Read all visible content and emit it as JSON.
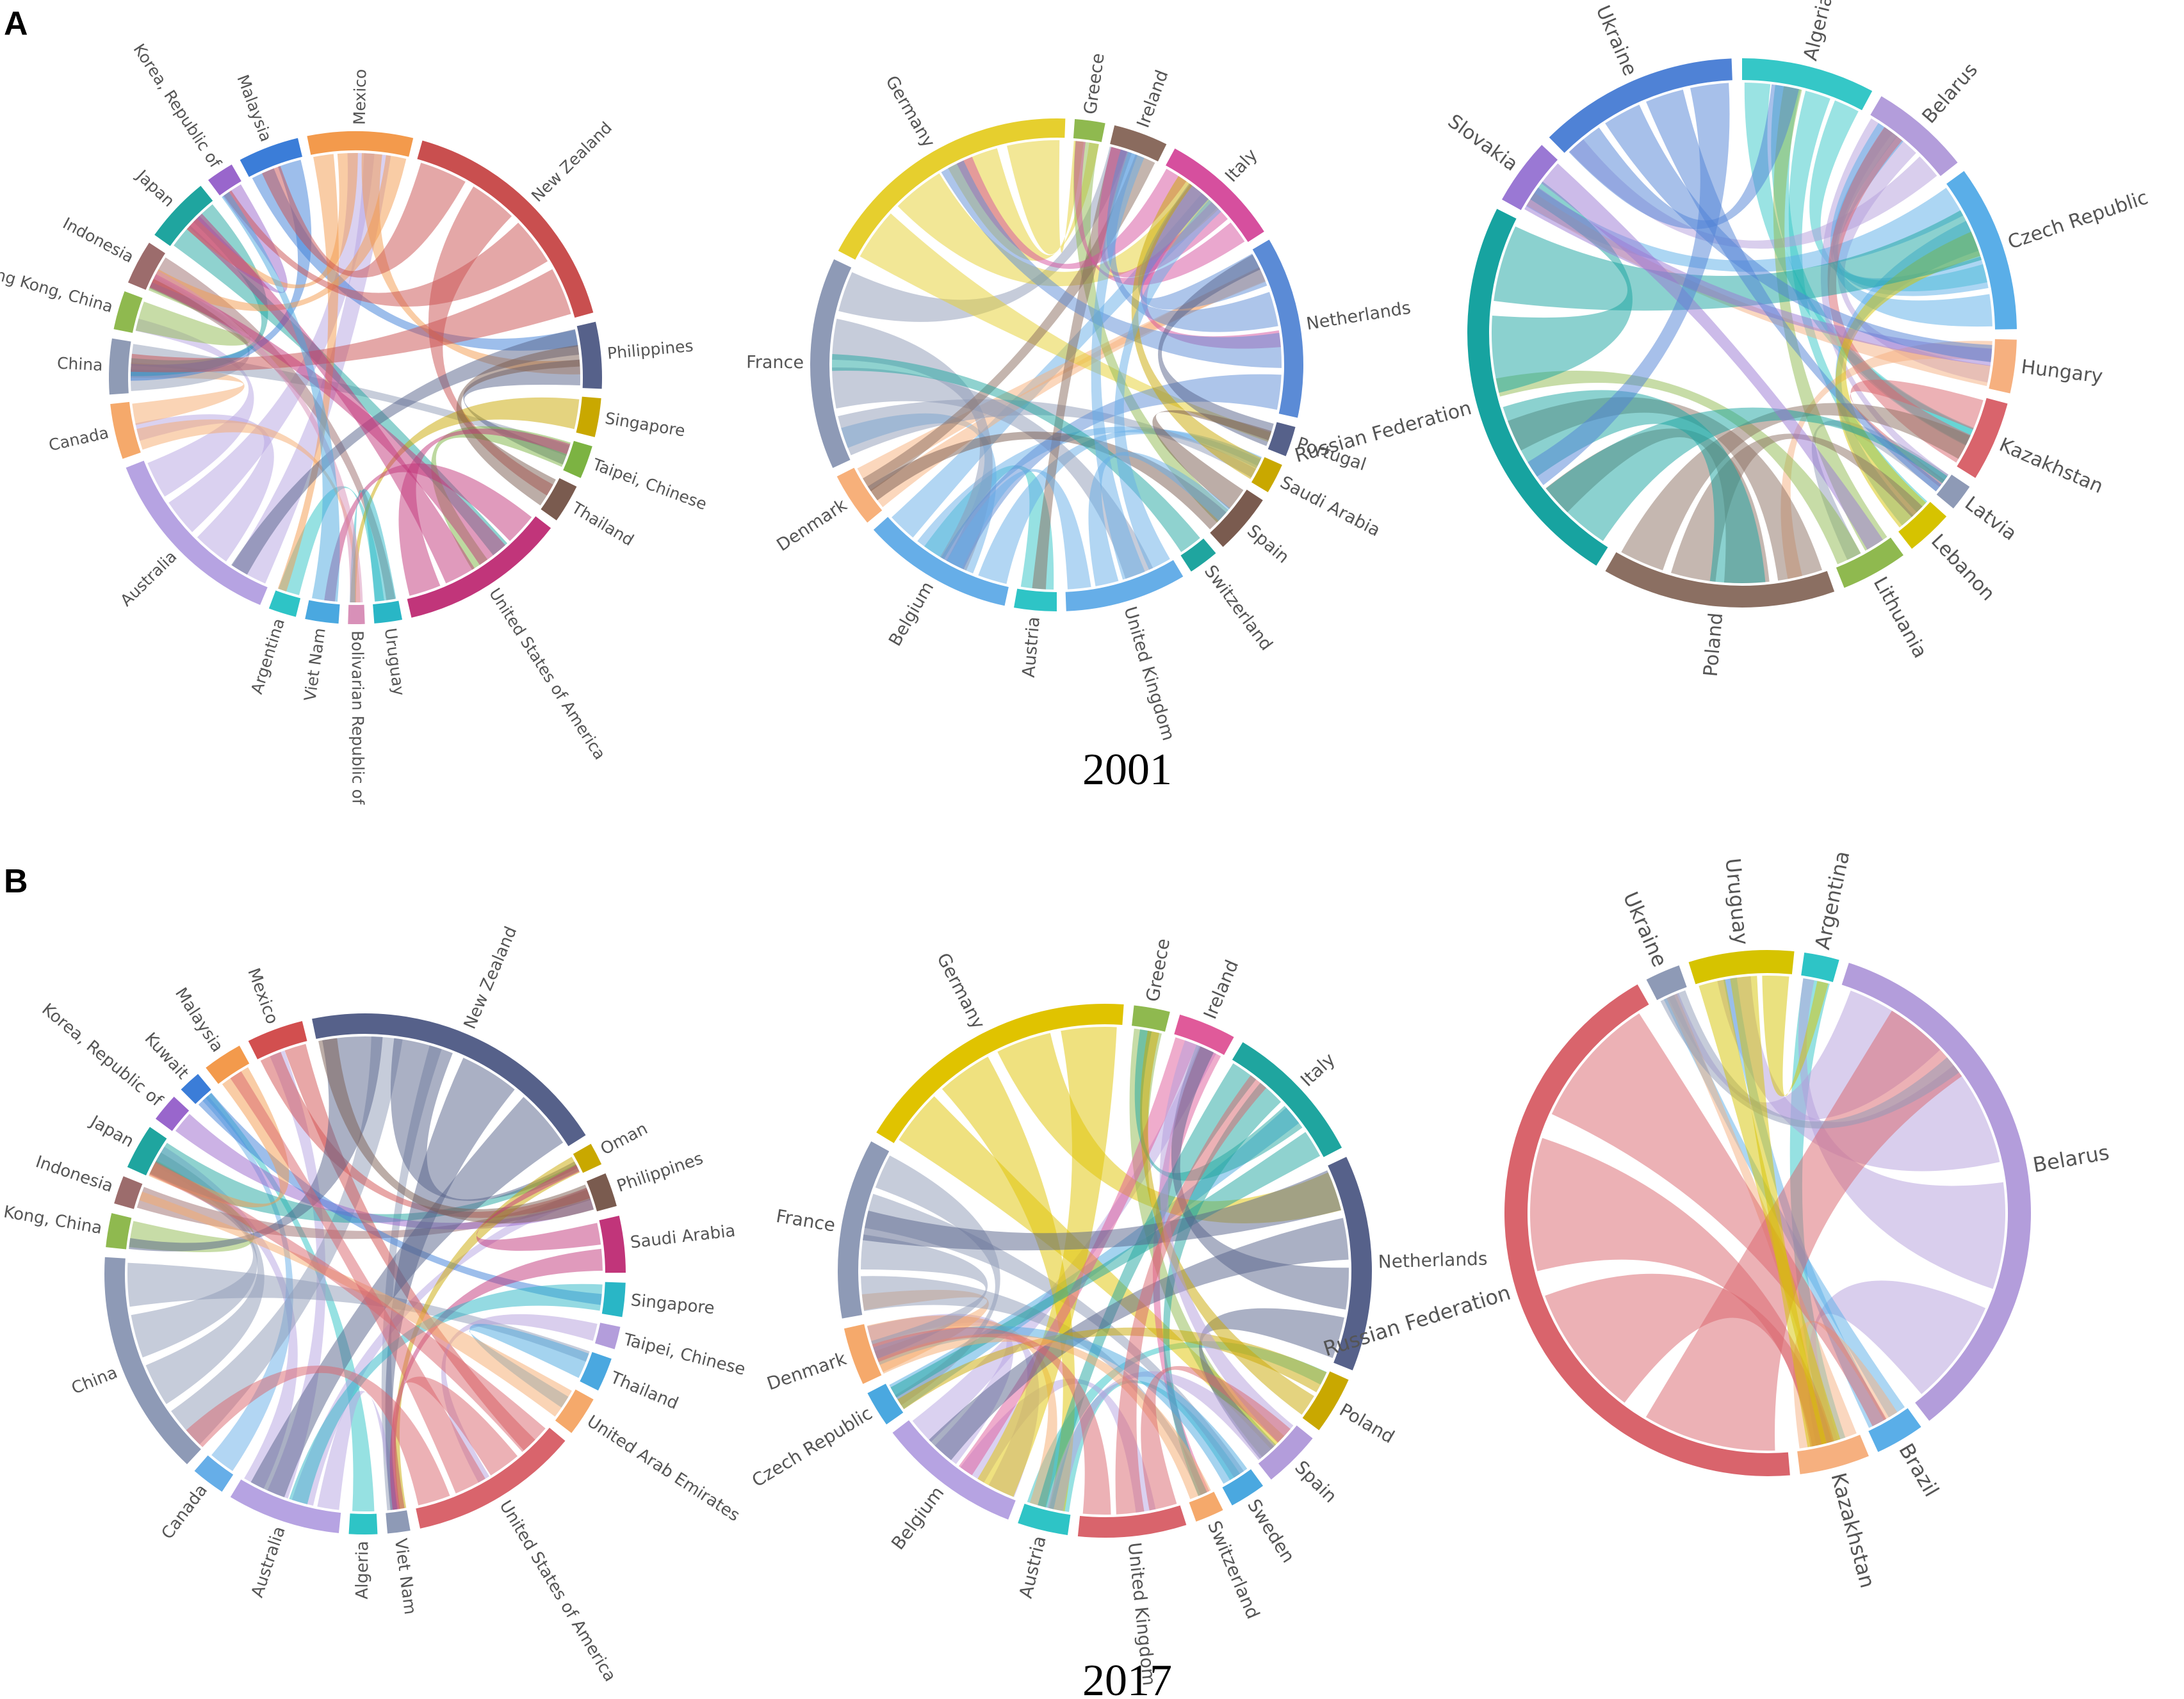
{
  "panels": [
    {
      "letter": "A",
      "year": "2001"
    },
    {
      "letter": "B",
      "year": "2017"
    }
  ],
  "diagrams": [
    {
      "panel": "A",
      "nodes": [
        {
          "name": "Argentina",
          "color": "#2ec4c6",
          "weight": 1
        },
        {
          "name": "Australia",
          "color": "#b6a3e2",
          "weight": 7
        },
        {
          "name": "Canada",
          "color": "#f5a96b",
          "weight": 2
        },
        {
          "name": "China",
          "color": "#8f9bb5",
          "weight": 2
        },
        {
          "name": "Hong Kong, China",
          "color": "#8fb94f",
          "weight": 1.4
        },
        {
          "name": "Indonesia",
          "color": "#9c6c6c",
          "weight": 1.6
        },
        {
          "name": "Japan",
          "color": "#1fa59f",
          "weight": 2.4
        },
        {
          "name": "Korea, Republic of",
          "color": "#9966cc",
          "weight": 1
        },
        {
          "name": "Malaysia",
          "color": "#3b7dd8",
          "weight": 2.2
        },
        {
          "name": "Mexico",
          "color": "#f39a4c",
          "weight": 3.8
        },
        {
          "name": "New Zealand",
          "color": "#c94f4f",
          "weight": 9
        },
        {
          "name": "Philippines",
          "color": "#56618a",
          "weight": 2.4
        },
        {
          "name": "Singapore",
          "color": "#c9a800",
          "weight": 1.4
        },
        {
          "name": "Taipei, Chinese",
          "color": "#7cb342",
          "weight": 1.2
        },
        {
          "name": "Thailand",
          "color": "#7a5b4f",
          "weight": 1.4
        },
        {
          "name": "United States of America",
          "color": "#c1357a",
          "weight": 6
        },
        {
          "name": "Uruguay",
          "color": "#29b6c6",
          "weight": 1
        },
        {
          "name": "Bolivarian Republic of",
          "color": "#d890b8",
          "weight": 0.6
        },
        {
          "name": "Viet Nam",
          "color": "#4aa8e0",
          "weight": 1.2
        }
      ]
    },
    {
      "panel": "A",
      "nodes": [
        {
          "name": "Austria",
          "color": "#2ec4c6",
          "weight": 1.4
        },
        {
          "name": "Belgium",
          "color": "#66aee8",
          "weight": 5
        },
        {
          "name": "Denmark",
          "color": "#f7b07a",
          "weight": 1.8
        },
        {
          "name": "France",
          "color": "#8e9ab6",
          "weight": 7
        },
        {
          "name": "Germany",
          "color": "#e6cf2e",
          "weight": 9
        },
        {
          "name": "Greece",
          "color": "#8fb94f",
          "weight": 1
        },
        {
          "name": "Ireland",
          "color": "#8a6b5e",
          "weight": 1.8
        },
        {
          "name": "Italy",
          "color": "#d64f9e",
          "weight": 4
        },
        {
          "name": "Netherlands",
          "color": "#5b8bd6",
          "weight": 6
        },
        {
          "name": "Portugal",
          "color": "#56618a",
          "weight": 1
        },
        {
          "name": "Saudi Arabia",
          "color": "#c9a800",
          "weight": 1
        },
        {
          "name": "Spain",
          "color": "#7a5b4f",
          "weight": 2
        },
        {
          "name": "Switzerland",
          "color": "#1fa59f",
          "weight": 1
        },
        {
          "name": "United Kingdom",
          "color": "#66aee8",
          "weight": 4
        }
      ]
    },
    {
      "panel": "A",
      "nodes": [
        {
          "name": "Algeria",
          "color": "#35c7c7",
          "weight": 4
        },
        {
          "name": "Belarus",
          "color": "#b39ddb",
          "weight": 3
        },
        {
          "name": "Czech Republic",
          "color": "#5aaee8",
          "weight": 5
        },
        {
          "name": "Hungary",
          "color": "#f6b07f",
          "weight": 1.6
        },
        {
          "name": "Kazakhstan",
          "color": "#d9646c",
          "weight": 2.4
        },
        {
          "name": "Latvia",
          "color": "#8e9ab6",
          "weight": 0.8
        },
        {
          "name": "Lebanon",
          "color": "#d6c300",
          "weight": 1.4
        },
        {
          "name": "Lithuania",
          "color": "#8fb94f",
          "weight": 2
        },
        {
          "name": "Poland",
          "color": "#8b6f62",
          "weight": 7
        },
        {
          "name": "Russian Federation",
          "color": "#17a3a0",
          "weight": 12
        },
        {
          "name": "Slovakia",
          "color": "#9a78d4",
          "weight": 2
        },
        {
          "name": "Ukraine",
          "color": "#4f82d6",
          "weight": 6
        }
      ]
    },
    {
      "panel": "B",
      "nodes": [
        {
          "name": "Viet Nam",
          "color": "#8e9ab6",
          "weight": 0.8
        },
        {
          "name": "Algeria",
          "color": "#2ec4c6",
          "weight": 1
        },
        {
          "name": "Australia",
          "color": "#b6a3e2",
          "weight": 4
        },
        {
          "name": "Canada",
          "color": "#66aee8",
          "weight": 1.2
        },
        {
          "name": "China",
          "color": "#8e9ab6",
          "weight": 8
        },
        {
          "name": "Hong Kong, China",
          "color": "#8fb94f",
          "weight": 1.2
        },
        {
          "name": "Indonesia",
          "color": "#9c6c6c",
          "weight": 1
        },
        {
          "name": "Japan",
          "color": "#1fa59f",
          "weight": 1.6
        },
        {
          "name": "Korea, Republic of",
          "color": "#9966cc",
          "weight": 1
        },
        {
          "name": "Kuwait",
          "color": "#3b7dd8",
          "weight": 0.8
        },
        {
          "name": "Malaysia",
          "color": "#f39a4c",
          "weight": 1.4
        },
        {
          "name": "Mexico",
          "color": "#d24f4f",
          "weight": 2
        },
        {
          "name": "New Zealand",
          "color": "#56618a",
          "weight": 11
        },
        {
          "name": "Oman",
          "color": "#c9a800",
          "weight": 0.8
        },
        {
          "name": "Philippines",
          "color": "#7a5b4f",
          "weight": 1.2
        },
        {
          "name": "Saudi Arabia",
          "color": "#c1357a",
          "weight": 2
        },
        {
          "name": "Singapore",
          "color": "#29b6c6",
          "weight": 1.2
        },
        {
          "name": "Taipei, Chinese",
          "color": "#b39ddb",
          "weight": 0.8
        },
        {
          "name": "Thailand",
          "color": "#4aa8e0",
          "weight": 1.2
        },
        {
          "name": "United Arab Emirates",
          "color": "#f5a96b",
          "weight": 1.4
        },
        {
          "name": "United States of America",
          "color": "#d9646c",
          "weight": 6
        }
      ]
    },
    {
      "panel": "B",
      "nodes": [
        {
          "name": "Austria",
          "color": "#2ec4c6",
          "weight": 1.4
        },
        {
          "name": "Belgium",
          "color": "#b6a3e2",
          "weight": 4
        },
        {
          "name": "Czech Republic",
          "color": "#4aa8e0",
          "weight": 1
        },
        {
          "name": "Denmark",
          "color": "#f5a96b",
          "weight": 1.6
        },
        {
          "name": "France",
          "color": "#8e9ab6",
          "weight": 5
        },
        {
          "name": "Germany",
          "color": "#e0c300",
          "weight": 8
        },
        {
          "name": "Greece",
          "color": "#8fb94f",
          "weight": 1
        },
        {
          "name": "Ireland",
          "color": "#e05a9a",
          "weight": 1.6
        },
        {
          "name": "Italy",
          "color": "#1fa59f",
          "weight": 4
        },
        {
          "name": "Netherlands",
          "color": "#56618a",
          "weight": 6
        },
        {
          "name": "Poland",
          "color": "#c9a800",
          "weight": 1.6
        },
        {
          "name": "Spain",
          "color": "#b39ddb",
          "weight": 1.6
        },
        {
          "name": "Sweden",
          "color": "#4aa8e0",
          "weight": 1
        },
        {
          "name": "Switzerland",
          "color": "#f5a96b",
          "weight": 0.8
        },
        {
          "name": "United Kingdom",
          "color": "#d9646c",
          "weight": 3
        }
      ]
    },
    {
      "panel": "B",
      "nodes": [
        {
          "name": "Argentina",
          "color": "#2ec4c6",
          "weight": 1
        },
        {
          "name": "Belarus",
          "color": "#b39ddb",
          "weight": 16
        },
        {
          "name": "Brazil",
          "color": "#5aaee8",
          "weight": 1.4
        },
        {
          "name": "Kazakhstan",
          "color": "#f6b07f",
          "weight": 2
        },
        {
          "name": "Russian Federation",
          "color": "#d9646c",
          "weight": 20
        },
        {
          "name": "Ukraine",
          "color": "#8e9ab6",
          "weight": 1
        },
        {
          "name": "Uruguay",
          "color": "#d6c300",
          "weight": 3
        }
      ]
    }
  ]
}
